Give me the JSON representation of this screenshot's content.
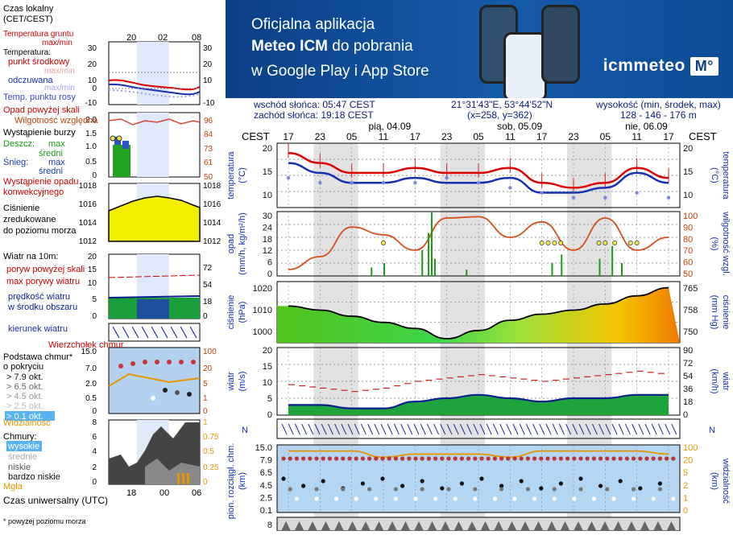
{
  "banner": {
    "line1": "Oficjalna aplikacja",
    "line2_bold": "Meteo ICM",
    "line2_rest": " do pobrania",
    "line3": "w Google Play i App Store",
    "logo": "icmmeteo",
    "logo_box": "M°"
  },
  "info": {
    "sunrise": "wschód słońca: 05:47 CEST",
    "sunset": "zachód słońca: 19:18 CEST",
    "coords": "21°31'43\"E, 53°44'52\"N",
    "grid": "(x=258,  y=362)",
    "elev_label": "wysokość (min, środek, max)",
    "elev_value": "128 - 146 - 176 m"
  },
  "timeline": {
    "tz": "CEST",
    "hours": [
      "17",
      "23",
      "05",
      "11",
      "17",
      "23",
      "05",
      "11",
      "17",
      "23",
      "05",
      "11",
      "17"
    ],
    "days": [
      "pią, 04.09",
      "sob, 05.09",
      "nie, 06.09"
    ]
  },
  "panels": {
    "temp": {
      "left": "temperatura\n(°C)",
      "right": "(°C)\ntemperatura",
      "ticks": [
        "20",
        "15",
        "10"
      ]
    },
    "precip": {
      "left": "opad\n(mm/h, kg/m²/h)",
      "right": "(%)\nwilgotność wzgl.",
      "ticks_l": [
        "30",
        "24",
        "18",
        "12",
        "6",
        "0"
      ],
      "ticks_r": [
        "100",
        "90",
        "80",
        "70",
        "60",
        "50"
      ]
    },
    "pressure": {
      "left": "ciśnienie\n(hPa)",
      "right": "(mm Hg)\nciśnienie",
      "ticks_l": [
        "1020",
        "1010",
        "1000"
      ],
      "ticks_r": [
        "765",
        "758",
        "750"
      ]
    },
    "wind": {
      "left": "wiatr\n(m/s)",
      "right": "(km/h)\nwiatr",
      "ticks_l": [
        "20",
        "15",
        "10",
        "5",
        "0"
      ],
      "ticks_r": [
        "90",
        "72",
        "54",
        "36",
        "18",
        "0"
      ]
    },
    "winddir": {
      "label": "N"
    },
    "clouds": {
      "left": "pion. rozciągł. chm.\n(km)",
      "right": "(km)\nwidzialność",
      "ticks_l": [
        "15.0",
        "7.9",
        "6.5",
        "4.5",
        "2.5",
        "0.1"
      ],
      "ticks_r": [
        "100",
        "20",
        "5",
        "2",
        "1",
        "0"
      ]
    },
    "bottom": {
      "ticks_l": [
        "8"
      ]
    }
  },
  "legend": {
    "tz_title": "Czas lokalny\n(CET/CEST)",
    "top_hours": [
      "20",
      "02",
      "08"
    ],
    "ground_temp": "Temperatura gruntu",
    "maxmin": "max/min",
    "temperature": "Temperatura:",
    "midpoint": "punkt środkowy",
    "maxmin2": "max/min",
    "feels": "odczuwana",
    "maxmin3": "max/min",
    "dew": "Temp. punktu rosy",
    "temp_ticks": [
      "30",
      "20",
      "10",
      "0",
      "-10"
    ],
    "precip_above": "Opad powyżej skali",
    "humidity": "Wilgotność względna",
    "storm": "Wystąpienie burzy",
    "rain": "Deszcz:",
    "rain_max": "max",
    "rain_mid": "średni",
    "snow": "Śnieg:",
    "snow_max": "max",
    "snow_mid": "średni",
    "precip_event": "Wystąpienie opadu\nkonwekcyjnego",
    "precip_ticks_l": [
      "2.0",
      "1.5",
      "1.0",
      "0.5",
      "0"
    ],
    "precip_ticks_r": [
      "96",
      "84",
      "73",
      "61",
      "50"
    ],
    "pressure_ticks": [
      "1018",
      "1016",
      "1014",
      "1012"
    ],
    "pressure_label": "Ciśnienie\nzredukowane\ndo poziomu morza",
    "wind_label": "Wiatr na 10m:",
    "wind_gust_above": "poryw powyżej skali",
    "wind_gust_max": "max porywy wiatru",
    "wind_speed": "prędkość wiatru\nw środku obszaru",
    "wind_ticks_l": [
      "20",
      "15",
      "10",
      "5",
      "0"
    ],
    "wind_ticks_r": [
      "72",
      "54",
      "36",
      "18",
      "0"
    ],
    "wind_dir": "kierunek wiatru",
    "cloud_top": "Wierzchołek chmur",
    "cloud_base": "Podstawa chmur*\no pokryciu",
    "okt": [
      "> 7.9 okt.",
      "> 6.5 okt.",
      "> 4.5 okt.",
      "> 2.5 okt.",
      "> 0.1 okt."
    ],
    "vis": "Widzialność",
    "cloud_ticks_l": [
      "15.0",
      "7.0",
      "2.0",
      "0.5",
      "0"
    ],
    "cloud_ticks_r": [
      "100",
      "20",
      "5",
      "1",
      "0"
    ],
    "clouds": "Chmury:",
    "high": "wysokie",
    "mid": "średnie",
    "low": "niskie",
    "very_low": "bardzo niskie",
    "fog": "Mgła",
    "clouds_ticks_l": [
      "8",
      "6",
      "4",
      "2",
      "0"
    ],
    "clouds_ticks_r": [
      "1",
      "0.75",
      "0.5",
      "0.25",
      "0"
    ],
    "utc": "Czas uniwersalny (UTC)",
    "utc_hours": [
      "18",
      "00",
      "06"
    ],
    "footnote": "* powyżej poziomu morza"
  },
  "chart_data": {
    "type": "line",
    "x_hours_cest": [
      "17",
      "23",
      "05",
      "11",
      "17",
      "23",
      "05",
      "11",
      "17",
      "23",
      "05",
      "11",
      "17"
    ],
    "temperature_mid": [
      19,
      17,
      15,
      15,
      16,
      15,
      15,
      16,
      13,
      12,
      13,
      16,
      14
    ],
    "temperature_feels": [
      17,
      15,
      13,
      13,
      14,
      13,
      13,
      14,
      11,
      11,
      12,
      15,
      13
    ],
    "dew_point": [
      14,
      13,
      13,
      13,
      13,
      14,
      13,
      12,
      11,
      10,
      10,
      11,
      10
    ],
    "humidity_pct": [
      55,
      65,
      88,
      82,
      70,
      95,
      96,
      80,
      92,
      70,
      95,
      70,
      80
    ],
    "pressure_hpa": [
      1013,
      1011,
      1008,
      1005,
      1002,
      997,
      1001,
      1006,
      1009,
      1011,
      1014,
      1018,
      1022
    ],
    "wind_mean_ms": [
      3,
      3,
      2,
      2,
      4,
      5,
      6,
      5,
      4,
      5,
      5,
      6,
      6
    ],
    "wind_gust_ms": [
      9,
      8,
      7,
      8,
      10,
      11,
      12,
      11,
      10,
      11,
      12,
      13,
      12
    ],
    "visibility_km": [
      20,
      20,
      20,
      18,
      19,
      19,
      19,
      18,
      20,
      20,
      20,
      20,
      19
    ],
    "ylim_temp": [
      8,
      21
    ],
    "ylim_pressure": [
      995,
      1025
    ]
  }
}
